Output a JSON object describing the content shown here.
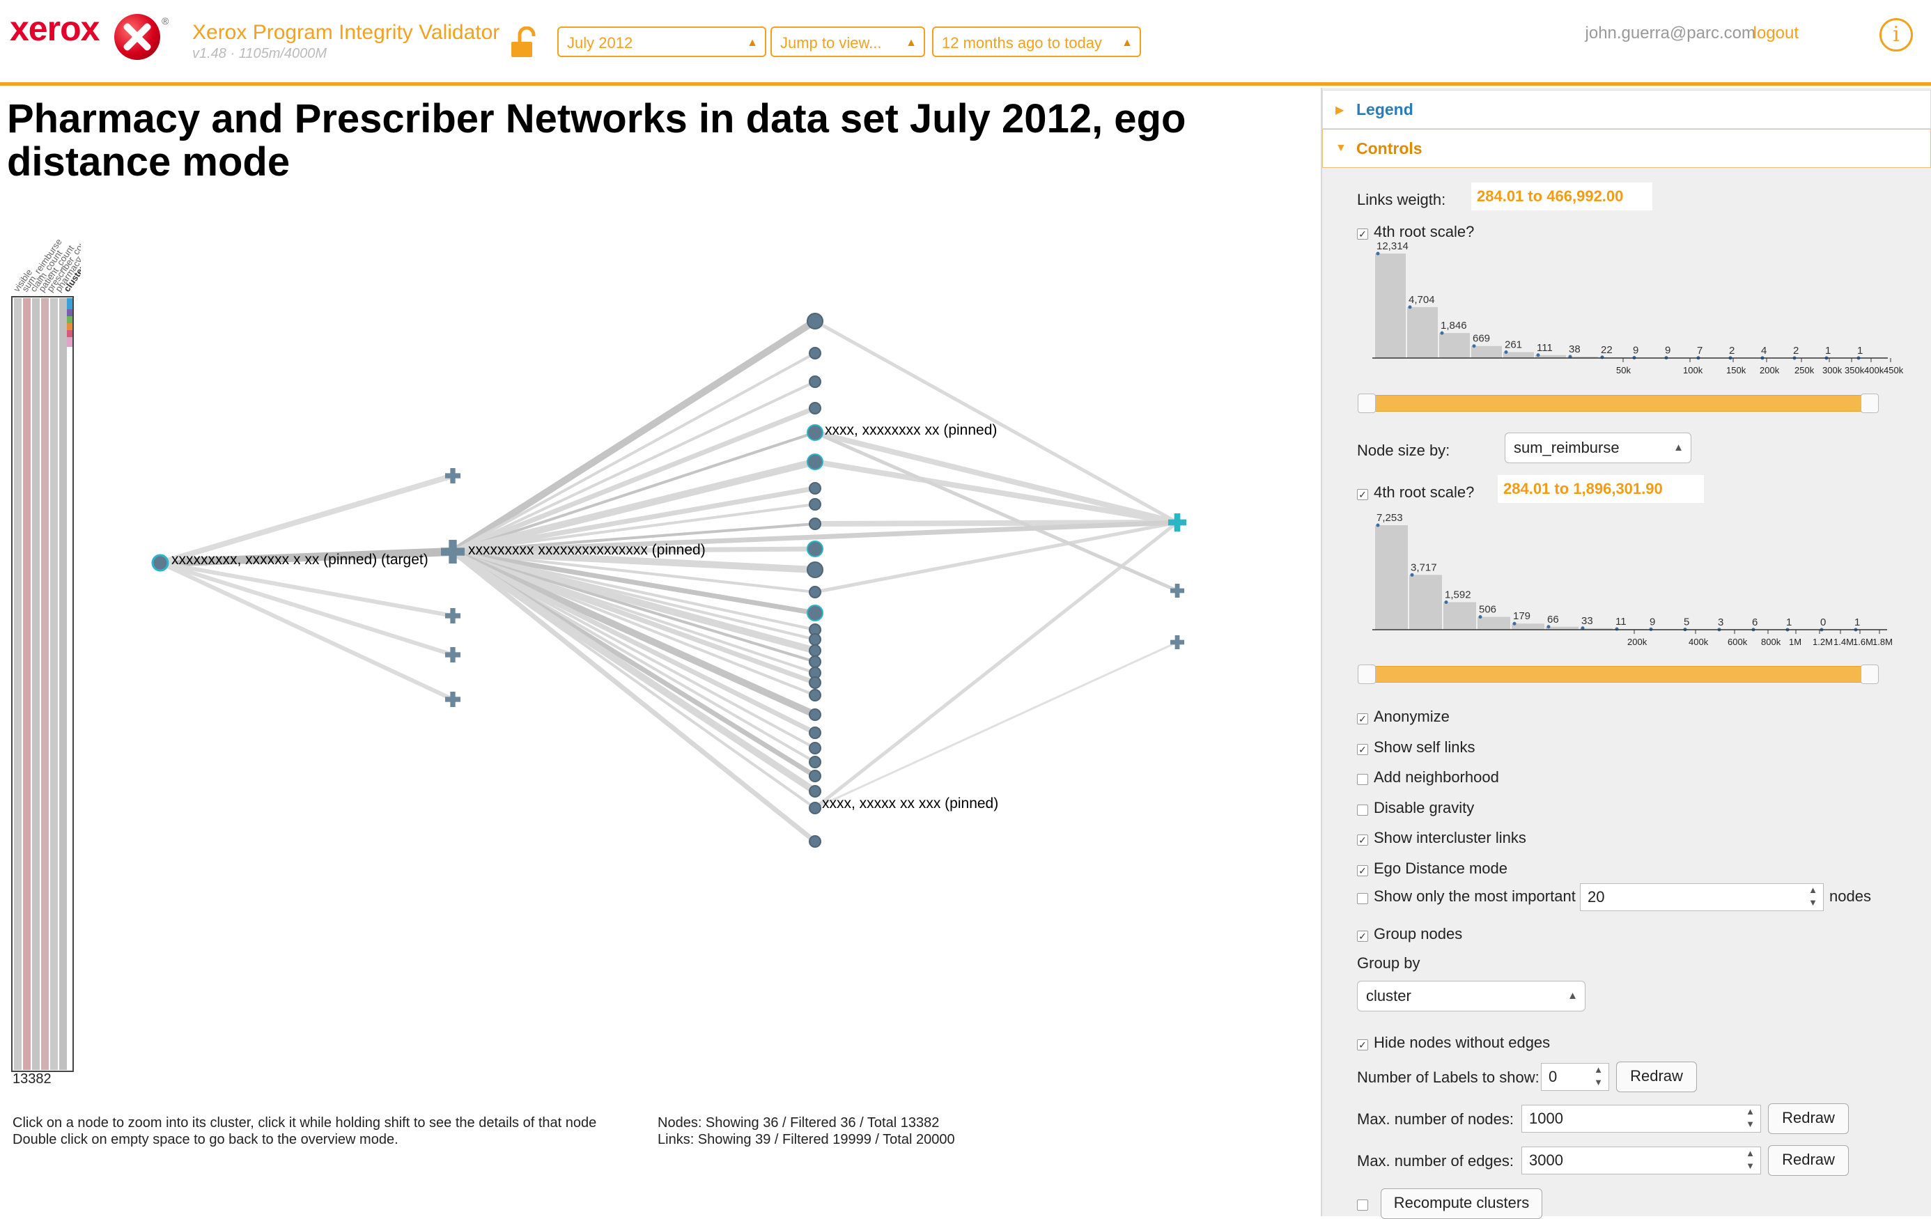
{
  "header": {
    "logo": "xerox",
    "app_title": "Xerox Program Integrity Validator",
    "version": "v1.48 · 1105m/4000M",
    "dataset_select": "July 2012",
    "view_select": "Jump to view...",
    "time_select": "12 months ago to today",
    "user": "john.guerra@parc.com",
    "logout": "logout",
    "info": "i",
    "accent": "#f3a11e"
  },
  "main": {
    "title": "Pharmacy and Prescriber Networks in data set July 2012, ego distance mode",
    "matrix_columns": [
      "visible",
      "sum_reimburse",
      "claim_count",
      "patient_count",
      "prescriber_count",
      "pharmacy_count",
      "cluster"
    ],
    "matrix_count": "13382",
    "help_line1": "Click on a node to zoom into its cluster, click it while holding shift to see the details of that node",
    "help_line2": "Double click on empty space to go back to the overview mode.",
    "stats_nodes": "Nodes: Showing 36 / Filtered 36 / Total 13382",
    "stats_links": "Links: Showing 39 / Filtered 19999 / Total 20000",
    "labels": {
      "target": "xxxxxxxxx, xxxxxx x xx (pinned) (target)",
      "pharmacy": "xxxxxxxxx xxxxxxxxxxxxxxx (pinned)",
      "prescriber1": "xxxx, xxxxxxxx xx (pinned)",
      "prescriber2": "xxxx, xxxxx xx xxx (pinned)"
    }
  },
  "panel": {
    "legend": "Legend",
    "controls": "Controls",
    "links_weight_label": "Links weigth:",
    "links_weight_range": "284.01 to 466,992.00",
    "links_root_scale": "4th root scale?",
    "hist1": {
      "counts": [
        "12,314",
        "4,704",
        "1,846",
        "669",
        "261",
        "111",
        "38",
        "22",
        "9",
        "9",
        "7",
        "2",
        "4",
        "2",
        "1",
        "1"
      ],
      "values": [
        12314,
        4704,
        1846,
        669,
        261,
        111,
        38,
        22,
        9,
        9,
        7,
        2,
        4,
        2,
        1,
        1
      ],
      "ticks": [
        "50k",
        "100k",
        "150k",
        "200k",
        "250k",
        "300k",
        "350k",
        "400k",
        "450k"
      ]
    },
    "node_size_label": "Node size by:",
    "node_size_select": "sum_reimburse",
    "node_root_scale": "4th root scale?",
    "node_size_range": "284.01 to 1,896,301.90",
    "hist2": {
      "counts": [
        "7,253",
        "3,717",
        "1,592",
        "506",
        "179",
        "66",
        "33",
        "11",
        "9",
        "5",
        "3",
        "6",
        "1",
        "0",
        "1"
      ],
      "values": [
        7253,
        3717,
        1592,
        506,
        179,
        66,
        33,
        11,
        9,
        5,
        3,
        6,
        1,
        0,
        1
      ],
      "ticks": [
        "200k",
        "400k",
        "600k",
        "800k",
        "1M",
        "1.2M",
        "1.4M",
        "1.6M",
        "1.8M"
      ]
    },
    "options": [
      {
        "label": "Anonymize",
        "checked": true
      },
      {
        "label": "Show self links",
        "checked": true
      },
      {
        "label": "Add neighborhood",
        "checked": false
      },
      {
        "label": "Disable gravity",
        "checked": false
      },
      {
        "label": "Show intercluster links",
        "checked": true
      },
      {
        "label": "Ego Distance mode",
        "checked": true
      }
    ],
    "important_label": "Show only the most important",
    "important_value": "20",
    "important_suffix": "nodes",
    "group_nodes": "Group nodes",
    "group_by_label": "Group by",
    "group_by_select": "cluster",
    "hide_nodes": "Hide nodes without edges",
    "labels_label": "Number of Labels to show:",
    "labels_value": "0",
    "redraw": "Redraw",
    "max_nodes_label": "Max. number of nodes:",
    "max_nodes_value": "1000",
    "max_edges_label": "Max. number of edges:",
    "max_edges_value": "3000",
    "recompute": "Recompute clusters"
  }
}
